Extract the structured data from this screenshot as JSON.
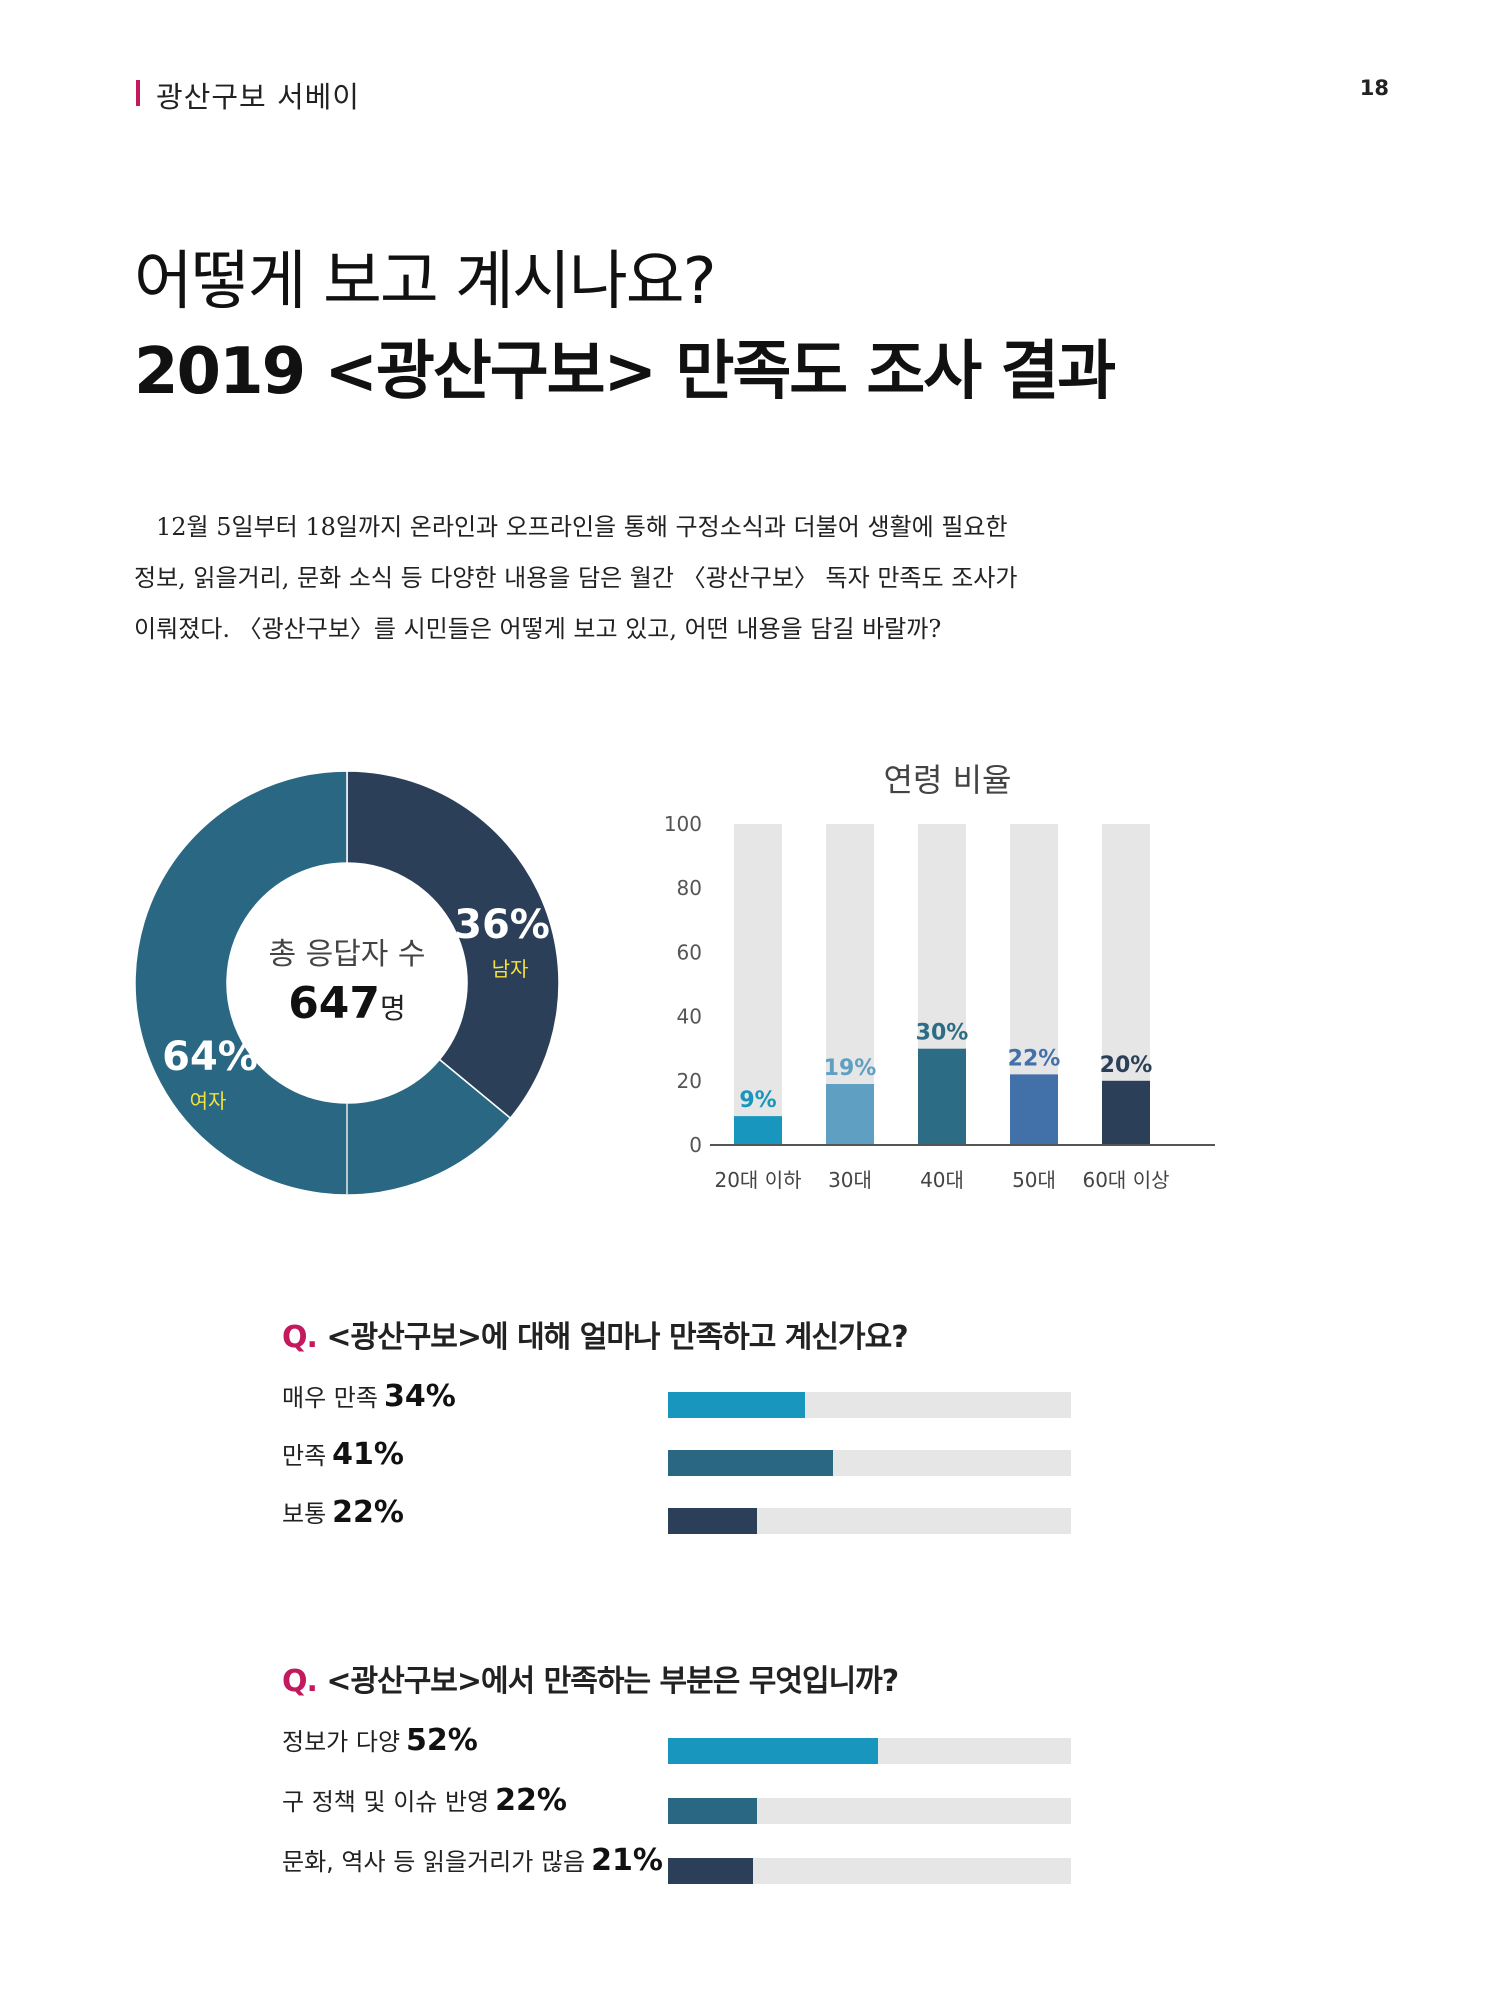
{
  "header": {
    "section": "광산구보 서베이",
    "page_number": "18"
  },
  "title": {
    "line1": "어떻게 보고 계시나요?",
    "line2": "2019 <광산구보> 만족도 조사 결과"
  },
  "intro": [
    "12월 5일부터 18일까지 온라인과 오프라인을 통해 구정소식과 더불어 생활에 필요한",
    "정보, 읽을거리, 문화 소식 등 다양한 내용을 담은 월간 〈광산구보〉 독자 만족도 조사가",
    "이뤄졌다. 〈광산구보〉를 시민들은 어떻게 보고 있고, 어떤 내용을 담길 바랄까?"
  ],
  "colors": {
    "accent": "#c3195d",
    "male": "#2c3f58",
    "female": "#2a6783",
    "label_yellow": "#f3e23a",
    "track": "#e6e6e6"
  },
  "chart_data": [
    {
      "type": "pie",
      "center_label": "총 응답자 수",
      "total": "647",
      "total_unit": "명",
      "slices": [
        {
          "label": "남자",
          "value": 36,
          "pct_text": "36%"
        },
        {
          "label": "여자",
          "value": 64,
          "pct_text": "64%"
        }
      ]
    },
    {
      "type": "bar",
      "title": "연령 비율",
      "categories": [
        "20대 이하",
        "30대",
        "40대",
        "50대",
        "60대 이상"
      ],
      "values": [
        9,
        19,
        30,
        22,
        20
      ],
      "value_labels": [
        "9%",
        "19%",
        "30%",
        "22%",
        "20%"
      ],
      "colors": [
        "#1896bd",
        "#5fa0c2",
        "#2c6d85",
        "#4270a8",
        "#2c3f58"
      ],
      "ylim": [
        0,
        100
      ],
      "yticks": [
        "0",
        "20",
        "40",
        "60",
        "80",
        "100"
      ]
    }
  ],
  "q1": {
    "mark": "Q.",
    "text": "<광산구보>에 대해 얼마나 만족하고 계신가요?",
    "answers": [
      {
        "label": "매우 만족",
        "pct": "34%",
        "value": 34,
        "color": "#1896bd"
      },
      {
        "label": "만족",
        "pct": "41%",
        "value": 41,
        "color": "#2a6783"
      },
      {
        "label": "보통",
        "pct": "22%",
        "value": 22,
        "color": "#2c3f58"
      }
    ]
  },
  "q2": {
    "mark": "Q.",
    "text": "<광산구보>에서 만족하는 부분은 무엇입니까?",
    "answers": [
      {
        "label": "정보가 다양",
        "pct": "52%",
        "value": 52,
        "color": "#1896bd"
      },
      {
        "label": "구 정책 및 이슈 반영",
        "pct": "22%",
        "value": 22,
        "color": "#2a6783"
      },
      {
        "label": "문화, 역사 등 읽을거리가 많음",
        "pct": "21%",
        "value": 21,
        "color": "#2c3f58"
      }
    ]
  }
}
